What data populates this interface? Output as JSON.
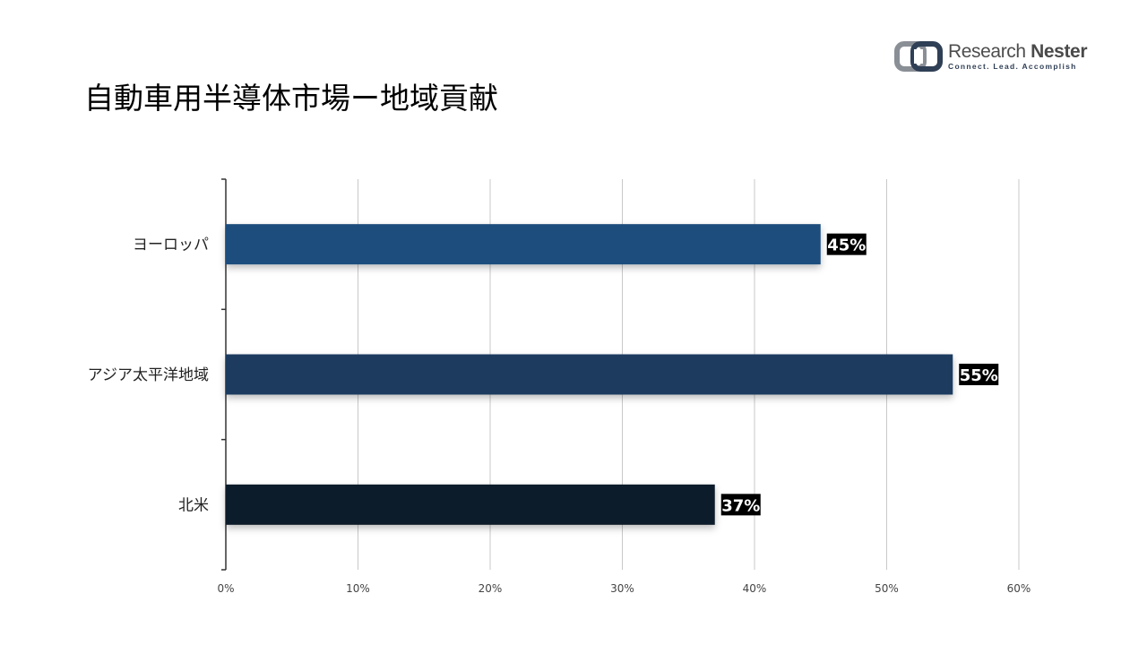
{
  "title": "自動車用半導体市場ー地域貢献",
  "logo": {
    "name_part1": "Research",
    "name_part2": "Nester",
    "tagline": "Connect. Lead. Accomplish"
  },
  "colors": {
    "europe_bar": "#1f4e7d",
    "asia_bar": "#1b3a5f",
    "north_america_bar": "#0e1e2c",
    "label_bg": "#000000",
    "gridline": "#c8c8c8",
    "logo_accent": "#2f3f55"
  },
  "chart_data": {
    "type": "bar",
    "orientation": "horizontal",
    "categories": [
      "ヨーロッパ",
      "アジア太平洋地域",
      "北米"
    ],
    "values": [
      45,
      55,
      37
    ],
    "data_labels": [
      "45%",
      "55%",
      "37%"
    ],
    "xlim": [
      0,
      60
    ],
    "x_ticks": [
      0,
      10,
      20,
      30,
      40,
      50,
      60
    ],
    "x_tick_labels": [
      "0%",
      "10%",
      "20%",
      "30%",
      "40%",
      "50%",
      "60%"
    ],
    "grid": true,
    "legend": "none"
  }
}
